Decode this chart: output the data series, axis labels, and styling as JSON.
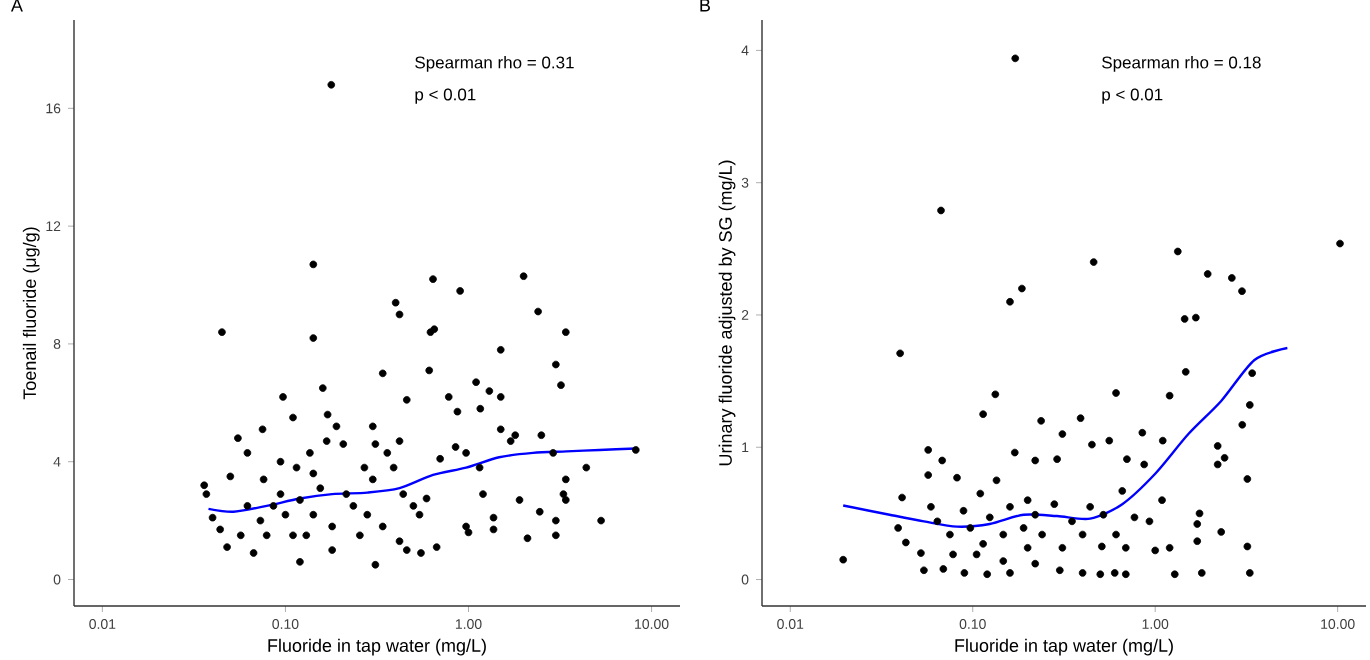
{
  "chart_data": [
    {
      "type": "scatter",
      "title": "A",
      "xlabel": "Fluoride in tap water (mg/L)",
      "ylabel": "Toenail fluoride (μg/g)",
      "log": "x",
      "xlim": [
        0.007,
        14.3
      ],
      "ylim": [
        -0.9,
        19
      ],
      "xticks": [
        {
          "value": 0.01,
          "label": "0.01"
        },
        {
          "value": 0.1,
          "label": "0.10"
        },
        {
          "value": 1,
          "label": "1.00"
        },
        {
          "value": 10,
          "label": "10.00"
        }
      ],
      "yticks": [
        0,
        4,
        8,
        12,
        16
      ],
      "annotations": [
        "Spearman rho = 0.31",
        "p < 0.01"
      ],
      "series": [
        {
          "marker": "circle",
          "color": "#000000",
          "x": [
            0.178,
            0.142,
            0.142,
            0.045,
            0.64,
            0.9,
            2.0,
            2.4,
            3.4,
            3.0,
            3.2,
            1.5,
            0.4,
            0.42,
            0.62,
            0.65,
            0.34,
            0.61,
            0.097,
            0.11,
            0.16,
            0.17,
            0.46,
            0.78,
            1.1,
            1.3,
            1.5,
            1.16,
            0.87,
            1.5,
            1.7,
            1.8,
            2.5,
            2.9,
            4.4,
            5.3,
            8.2,
            3.4,
            3.3,
            3.4,
            3.0,
            3.0,
            2.1,
            2.45,
            1.9,
            1.37,
            1.37,
            1.0,
            0.97,
            1.2,
            1.15,
            0.97,
            0.85,
            0.7,
            0.59,
            0.54,
            0.55,
            0.67,
            0.46,
            0.31,
            0.12,
            0.18,
            0.067,
            0.048,
            0.037,
            0.036,
            0.04,
            0.044,
            0.05,
            0.055,
            0.062,
            0.075,
            0.094,
            0.115,
            0.136,
            0.168,
            0.19,
            0.207,
            0.27,
            0.3,
            0.31,
            0.36,
            0.42,
            0.39,
            0.44,
            0.3,
            0.235,
            0.18,
            0.155,
            0.142,
            0.12,
            0.1,
            0.086,
            0.079,
            0.073,
            0.062,
            0.057,
            0.076,
            0.094,
            0.13,
            0.255,
            0.34,
            0.42,
            0.5,
            0.215,
            0.28,
            0.142,
            0.11
          ],
          "values": [
            16.8,
            10.7,
            8.2,
            8.4,
            10.2,
            9.8,
            10.3,
            9.1,
            8.4,
            7.3,
            6.6,
            7.8,
            9.4,
            9.0,
            8.4,
            8.5,
            7.0,
            7.1,
            6.2,
            5.5,
            6.5,
            5.6,
            6.1,
            6.2,
            6.7,
            6.4,
            6.2,
            5.8,
            5.7,
            5.1,
            4.7,
            4.9,
            4.9,
            4.3,
            3.8,
            2.0,
            4.4,
            3.4,
            2.9,
            2.7,
            2.0,
            1.5,
            1.4,
            2.3,
            2.7,
            2.1,
            1.7,
            1.6,
            1.8,
            2.9,
            3.8,
            4.3,
            4.5,
            4.1,
            2.75,
            2.2,
            0.9,
            1.1,
            1.0,
            0.5,
            0.6,
            1.0,
            0.9,
            1.1,
            2.9,
            3.2,
            2.1,
            1.7,
            3.5,
            4.8,
            4.3,
            5.1,
            4.0,
            3.8,
            4.3,
            4.7,
            5.2,
            4.6,
            3.8,
            5.2,
            4.6,
            4.3,
            4.7,
            3.8,
            2.9,
            3.4,
            2.5,
            1.8,
            3.1,
            2.2,
            2.7,
            2.2,
            2.5,
            1.5,
            2.0,
            2.5,
            1.5,
            3.4,
            2.9,
            1.5,
            1.5,
            1.8,
            1.3,
            2.5,
            2.9,
            2.2,
            3.6,
            1.5
          ]
        },
        {
          "type": "line",
          "marker": "none",
          "color": "#0000ff",
          "x": [
            0.038,
            0.052,
            0.079,
            0.12,
            0.18,
            0.28,
            0.42,
            0.64,
            0.97,
            1.47,
            2.25,
            3.43,
            5.2,
            8.2
          ],
          "values": [
            2.4,
            2.3,
            2.5,
            2.75,
            2.9,
            2.95,
            3.1,
            3.55,
            3.8,
            4.15,
            4.3,
            4.35,
            4.4,
            4.45
          ]
        }
      ]
    },
    {
      "type": "scatter",
      "title": "B",
      "xlabel": "Fluoride in tap water (mg/L)",
      "ylabel": "Urinary fluoride adjusted by SG (mg/L)",
      "log": "x",
      "xlim": [
        0.007,
        14.3
      ],
      "ylim": [
        -0.2,
        4.23
      ],
      "xticks": [
        {
          "value": 0.01,
          "label": "0.01"
        },
        {
          "value": 0.1,
          "label": "0.10"
        },
        {
          "value": 1,
          "label": "1.00"
        },
        {
          "value": 10,
          "label": "10.00"
        }
      ],
      "yticks": [
        0,
        1,
        2,
        3,
        4
      ],
      "annotations": [
        "Spearman rho = 0.18",
        "p < 0.01"
      ],
      "series": [
        {
          "marker": "circle",
          "color": "#000000",
          "x": [
            0.171,
            0.067,
            0.04,
            0.0195,
            0.46,
            0.186,
            0.16,
            0.133,
            0.114,
            0.237,
            0.39,
            0.61,
            1.33,
            1.94,
            2.63,
            2.99,
            10.3,
            1.45,
            1.67,
            1.47,
            1.2,
            3.4,
            3.3,
            3.0,
            3.2,
            3.2,
            3.3,
            2.2,
            2.4,
            2.2,
            1.75,
            1.8,
            1.28,
            1.2,
            1.09,
            1.1,
            0.85,
            0.87,
            0.7,
            0.66,
            0.77,
            0.56,
            0.45,
            0.31,
            0.29,
            0.22,
            0.17,
            0.2,
            0.135,
            0.11,
            0.082,
            0.068,
            0.057,
            0.057,
            0.041,
            0.039,
            0.043,
            0.052,
            0.054,
            0.069,
            0.09,
            0.12,
            0.16,
            0.22,
            0.3,
            0.4,
            0.5,
            0.6,
            0.69,
            0.51,
            0.4,
            0.31,
            0.24,
            0.19,
            0.147,
            0.114,
            0.097,
            0.075,
            0.064,
            0.059,
            0.089,
            0.124,
            0.16,
            0.22,
            0.28,
            0.35,
            0.44,
            0.52,
            0.61,
            0.69,
            0.93,
            1.0,
            1.7,
            1.7,
            2.3,
            0.105,
            0.147,
            0.2,
            0.078
          ],
          "values": [
            3.94,
            2.79,
            1.71,
            0.15,
            2.4,
            2.2,
            2.1,
            1.4,
            1.25,
            1.2,
            1.22,
            1.41,
            2.48,
            2.31,
            2.28,
            2.18,
            2.54,
            1.97,
            1.98,
            1.57,
            1.39,
            1.56,
            1.32,
            1.17,
            0.76,
            0.25,
            0.05,
            1.01,
            0.92,
            0.87,
            0.5,
            0.05,
            0.04,
            0.24,
            0.6,
            1.05,
            1.11,
            0.87,
            0.91,
            0.67,
            0.47,
            1.05,
            1.02,
            1.1,
            0.91,
            0.9,
            0.96,
            0.6,
            0.75,
            0.65,
            0.77,
            0.9,
            0.98,
            0.79,
            0.62,
            0.39,
            0.28,
            0.2,
            0.07,
            0.08,
            0.05,
            0.04,
            0.05,
            0.12,
            0.07,
            0.05,
            0.04,
            0.05,
            0.04,
            0.25,
            0.34,
            0.24,
            0.34,
            0.39,
            0.34,
            0.27,
            0.39,
            0.34,
            0.44,
            0.55,
            0.52,
            0.47,
            0.55,
            0.49,
            0.57,
            0.44,
            0.55,
            0.49,
            0.34,
            0.24,
            0.44,
            0.22,
            0.42,
            0.29,
            0.36,
            0.19,
            0.14,
            0.24,
            0.19
          ]
        },
        {
          "type": "line",
          "marker": "none",
          "color": "#0000ff",
          "x": [
            0.0195,
            0.035,
            0.054,
            0.082,
            0.124,
            0.19,
            0.29,
            0.44,
            0.66,
            1.0,
            1.52,
            2.3,
            3.5,
            5.3
          ],
          "values": [
            0.56,
            0.49,
            0.44,
            0.4,
            0.42,
            0.49,
            0.48,
            0.46,
            0.57,
            0.8,
            1.1,
            1.35,
            1.66,
            1.75
          ]
        }
      ]
    }
  ]
}
